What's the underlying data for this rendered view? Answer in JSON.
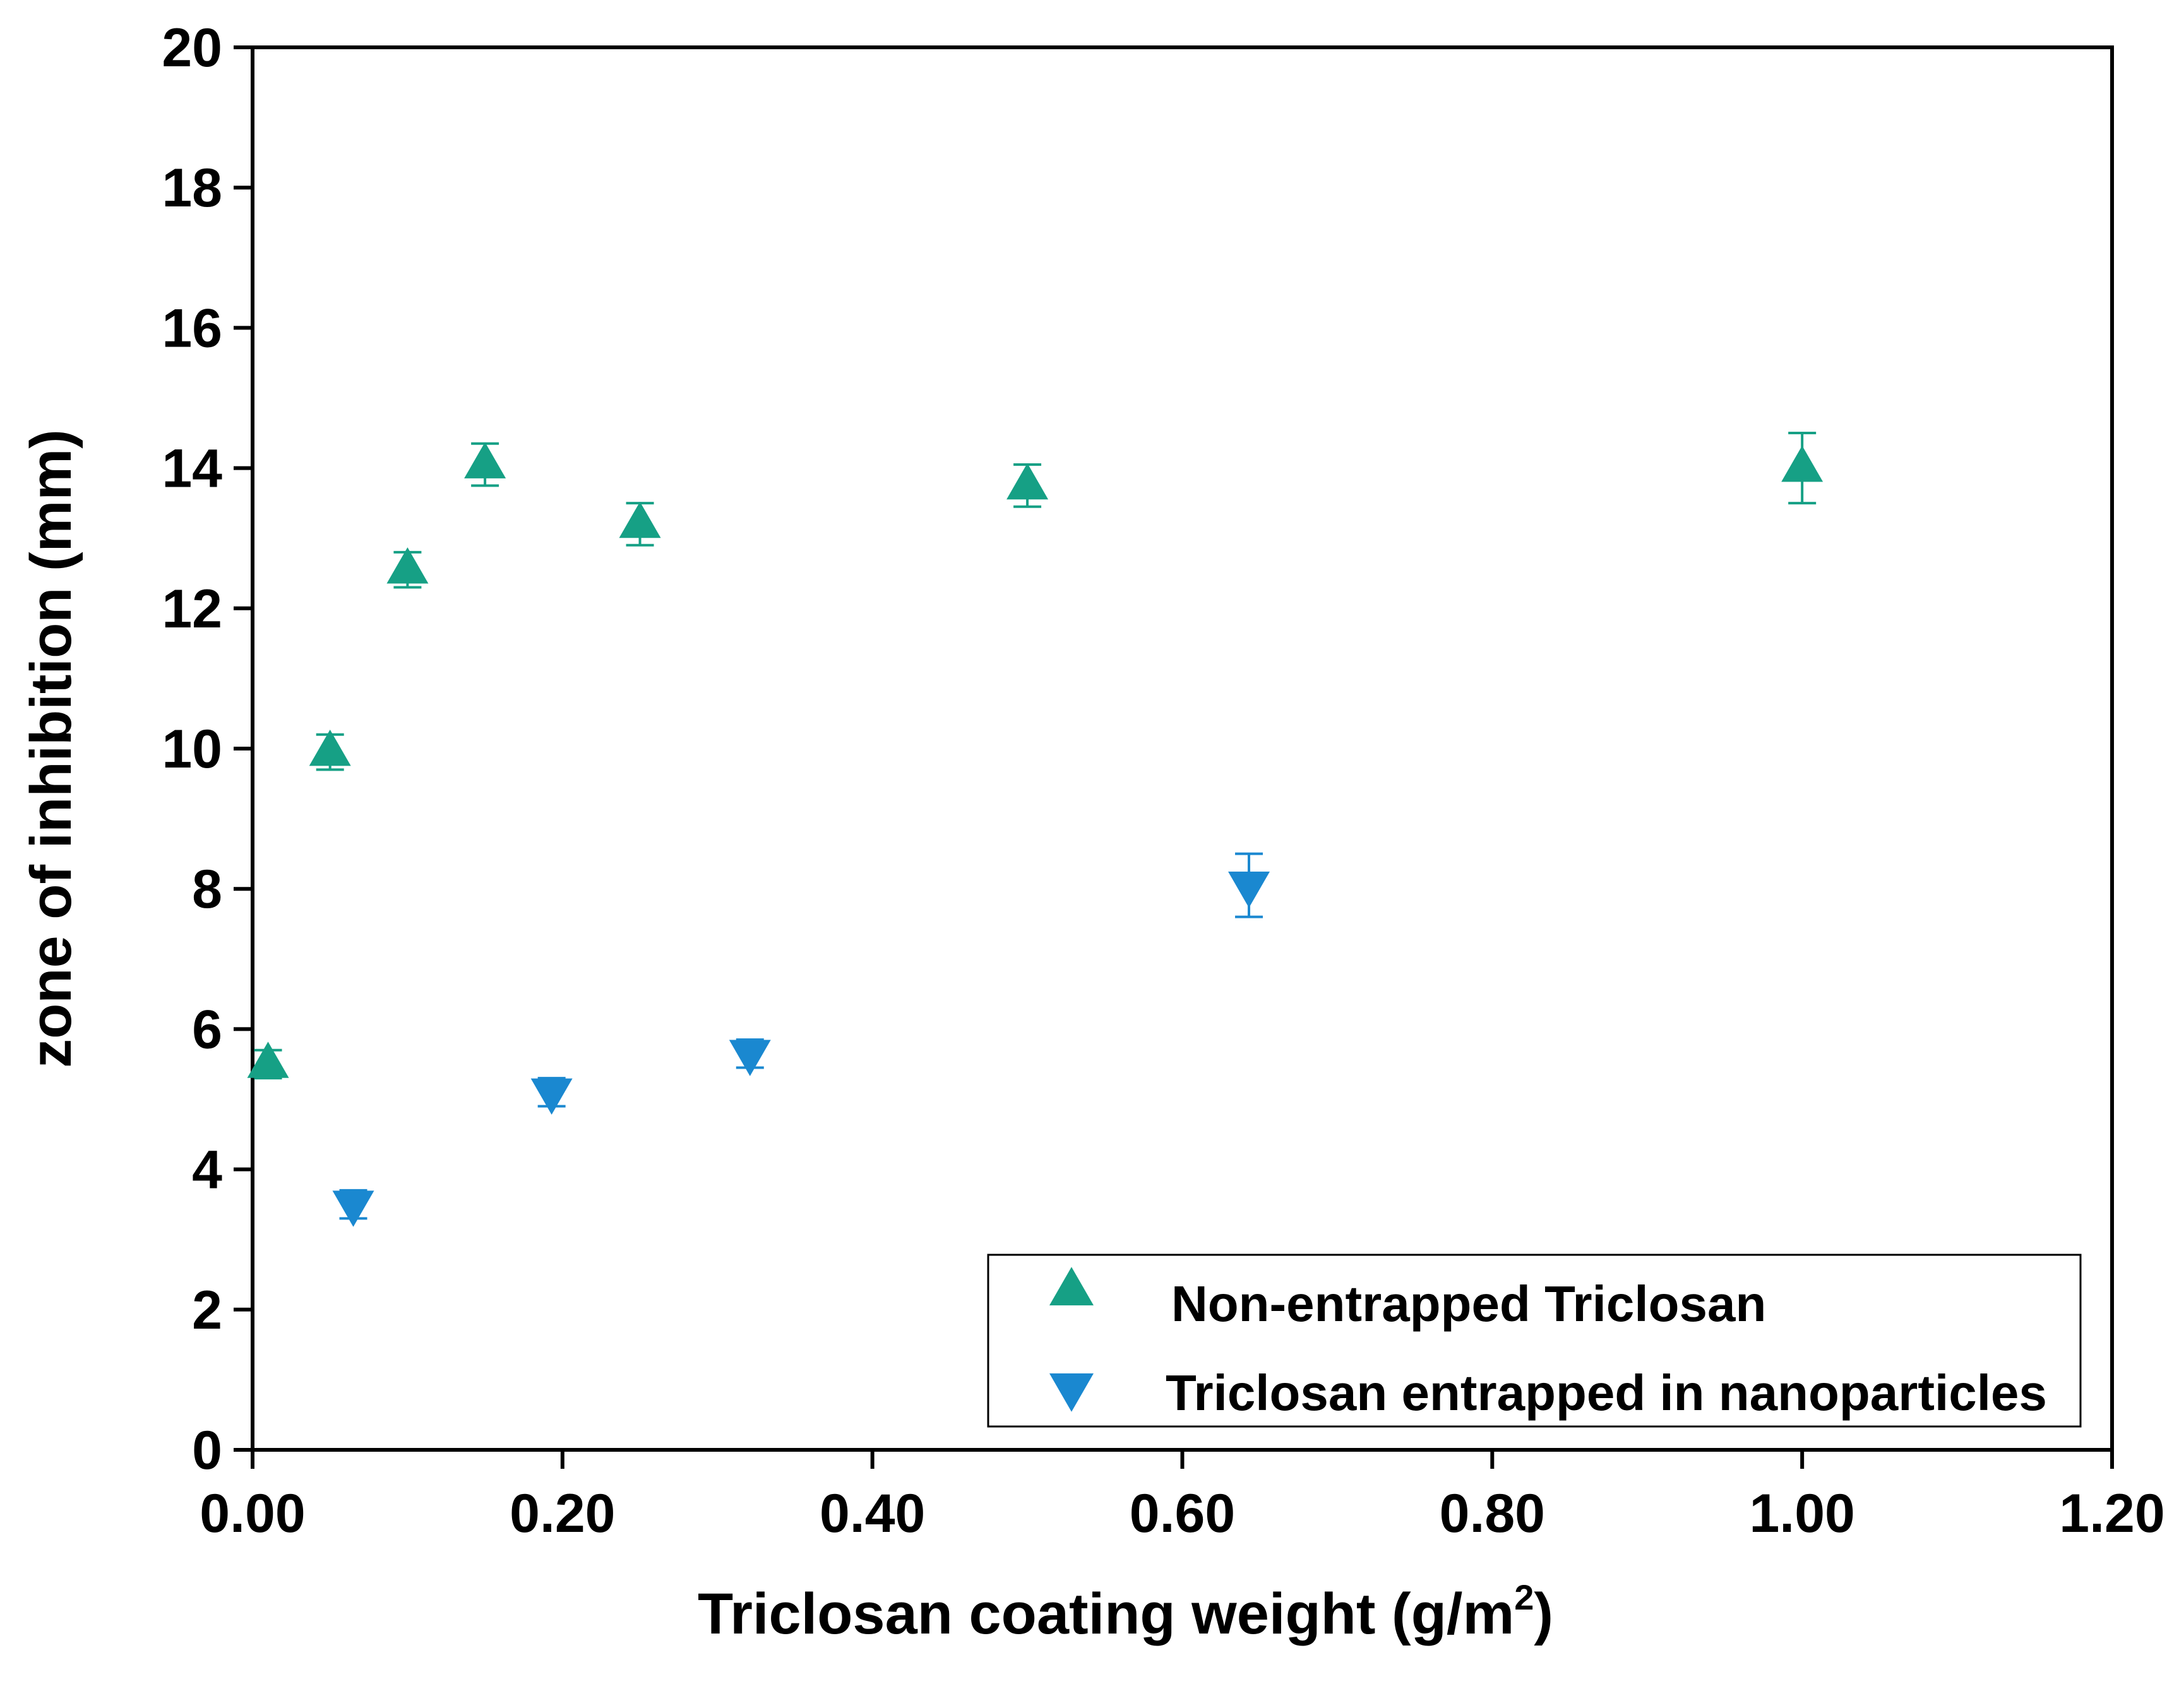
{
  "chart_data": {
    "type": "scatter",
    "xlabel": "Triclosan coating weight (g/m",
    "xlabel_superscript": "2",
    "xlabel_suffix": ")",
    "ylabel": "zone of inhibition (mm)",
    "xlim": [
      0,
      1.2
    ],
    "ylim": [
      0,
      20
    ],
    "x_ticks": [
      {
        "value": 0.0,
        "label": "0.00"
      },
      {
        "value": 0.2,
        "label": "0.20"
      },
      {
        "value": 0.4,
        "label": "0.40"
      },
      {
        "value": 0.6,
        "label": "0.60"
      },
      {
        "value": 0.8,
        "label": "0.80"
      },
      {
        "value": 1.0,
        "label": "1.00"
      },
      {
        "value": 1.2,
        "label": "1.20"
      }
    ],
    "y_ticks": [
      {
        "value": 0,
        "label": "0"
      },
      {
        "value": 2,
        "label": "2"
      },
      {
        "value": 4,
        "label": "4"
      },
      {
        "value": 6,
        "label": "6"
      },
      {
        "value": 8,
        "label": "8"
      },
      {
        "value": 10,
        "label": "10"
      },
      {
        "value": 12,
        "label": "12"
      },
      {
        "value": 14,
        "label": "14"
      },
      {
        "value": 16,
        "label": "16"
      },
      {
        "value": 18,
        "label": "18"
      },
      {
        "value": 20,
        "label": "20"
      }
    ],
    "grid": false,
    "legend_position": "bottom-right",
    "series": [
      {
        "name": "Non-entrapped Triclosan",
        "marker": "triangle-up",
        "color": "#16A085",
        "points": [
          {
            "x": 0.01,
            "y": 5.5,
            "err": 0.2
          },
          {
            "x": 0.05,
            "y": 9.95,
            "err": 0.25
          },
          {
            "x": 0.1,
            "y": 12.55,
            "err": 0.25
          },
          {
            "x": 0.15,
            "y": 14.05,
            "err": 0.3
          },
          {
            "x": 0.25,
            "y": 13.2,
            "err": 0.3
          },
          {
            "x": 0.5,
            "y": 13.75,
            "err": 0.3
          },
          {
            "x": 1.0,
            "y": 14.0,
            "err": 0.5
          }
        ]
      },
      {
        "name": "Triclosan entrapped in nanoparticles",
        "marker": "triangle-down",
        "color": "#1A88D0",
        "points": [
          {
            "x": 0.065,
            "y": 3.5,
            "err": 0.2
          },
          {
            "x": 0.193,
            "y": 5.1,
            "err": 0.2
          },
          {
            "x": 0.321,
            "y": 5.65,
            "err": 0.2
          },
          {
            "x": 0.643,
            "y": 8.05,
            "err": 0.45
          }
        ]
      }
    ]
  }
}
